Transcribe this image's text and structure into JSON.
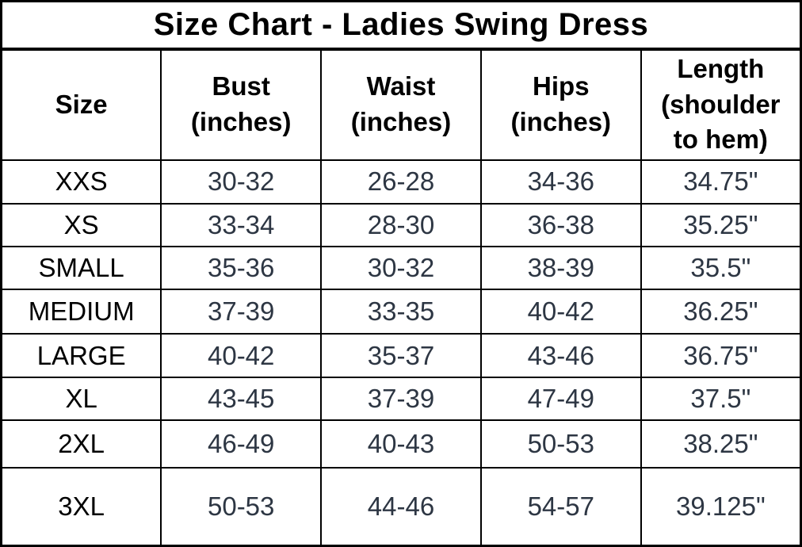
{
  "colors": {
    "background": "#ffffff",
    "border": "#000000",
    "heading_text": "#000000",
    "size_label_text": "#000000",
    "value_text": "#2d3643"
  },
  "chart_data": {
    "type": "table",
    "title": "Size Chart - Ladies Swing Dress",
    "columns": [
      "Size",
      "Bust (inches)",
      "Waist (inches)",
      "Hips (inches)",
      "Length (shoulder to hem)"
    ],
    "columns_display": [
      "Size",
      "Bust\n(inches)",
      "Waist\n(inches)",
      "Hips\n(inches)",
      "Length\n(shoulder\nto hem)"
    ],
    "rows": [
      [
        "XXS",
        "30-32",
        "26-28",
        "34-36",
        "34.75\""
      ],
      [
        "XS",
        "33-34",
        "28-30",
        "36-38",
        "35.25\""
      ],
      [
        "SMALL",
        "35-36",
        "30-32",
        "38-39",
        "35.5\""
      ],
      [
        "MEDIUM",
        "37-39",
        "33-35",
        "40-42",
        "36.25\""
      ],
      [
        "LARGE",
        "40-42",
        "35-37",
        "43-46",
        "36.75\""
      ],
      [
        "XL",
        "43-45",
        "37-39",
        "47-49",
        "37.5\""
      ],
      [
        "2XL",
        "46-49",
        "40-43",
        "50-53",
        "38.25\""
      ],
      [
        "3XL",
        "50-53",
        "44-46",
        "54-57",
        "39.125\""
      ]
    ]
  }
}
